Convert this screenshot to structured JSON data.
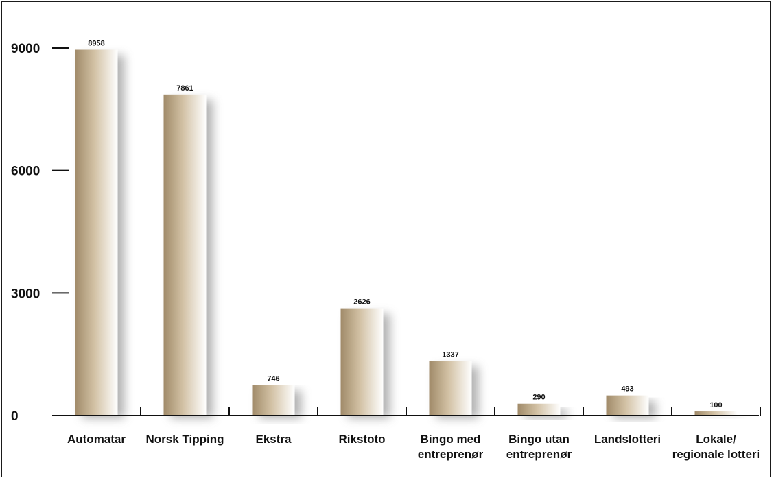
{
  "chart_data": {
    "type": "bar",
    "title": "",
    "xlabel": "",
    "ylabel": "",
    "categories": [
      [
        "Automatar"
      ],
      [
        "Norsk Tipping"
      ],
      [
        "Ekstra"
      ],
      [
        "Rikstoto"
      ],
      [
        "Bingo med",
        "entreprenør"
      ],
      [
        "Bingo utan",
        "entreprenør"
      ],
      [
        "Landslotteri"
      ],
      [
        "Lokale/",
        "regionale lotteri"
      ]
    ],
    "values": [
      8958,
      7861,
      746,
      2626,
      1337,
      290,
      493,
      100
    ],
    "ylim": [
      0,
      9000
    ],
    "yticks": [
      0,
      3000,
      6000,
      9000
    ],
    "grid": false,
    "legend": "none",
    "colors": {
      "bar_dark": "#a08a69",
      "bar_light": "#ffffff",
      "shadow": "#9a9a9a",
      "axis": "#111111"
    }
  }
}
